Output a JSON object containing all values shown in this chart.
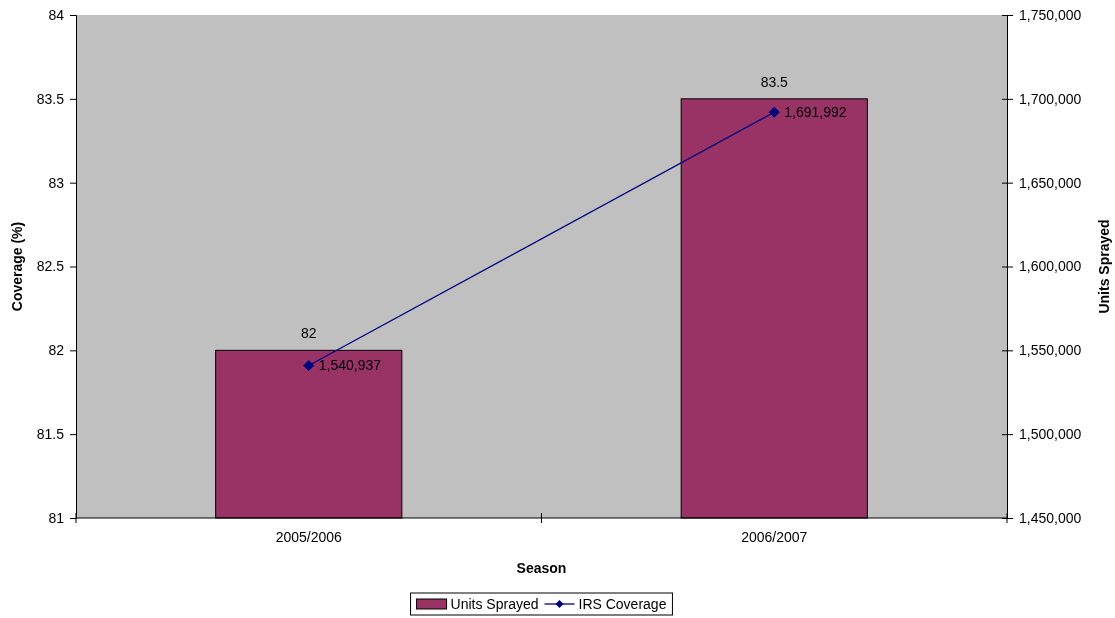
{
  "chart_data": {
    "type": "bar",
    "xlabel": "Season",
    "ylabel": "Coverage (%)",
    "y2label": "Units Sprayed",
    "categories": [
      "2005/2006",
      "2006/2007"
    ],
    "series": [
      {
        "name": "Units Sprayed",
        "color": "#993366",
        "values": [
          82,
          83.5
        ],
        "value_labels": [
          "82",
          "83.5"
        ]
      },
      {
        "name": "IRS Coverage",
        "type": "line",
        "axis": "y2",
        "color": "#000080",
        "values": [
          1540937,
          1691992
        ],
        "value_labels": [
          "1,540,937",
          "1,691,992"
        ]
      }
    ],
    "ylim": [
      81,
      84
    ],
    "yticks": [
      81,
      81.5,
      82,
      82.5,
      83,
      83.5,
      84
    ],
    "y2lim": [
      1450000,
      1750000
    ],
    "y2ticks": [
      {
        "value": 1450000,
        "label": "1,450,000"
      },
      {
        "value": 1500000,
        "label": "1,500,000"
      },
      {
        "value": 1550000,
        "label": "1,550,000"
      },
      {
        "value": 1600000,
        "label": "1,600,000"
      },
      {
        "value": 1650000,
        "label": "1,650,000"
      },
      {
        "value": 1700000,
        "label": "1,700,000"
      },
      {
        "value": 1750000,
        "label": "1,750,000"
      }
    ],
    "legend": "bottom",
    "marker": "diamond",
    "line_style": "solid",
    "grid": false
  }
}
